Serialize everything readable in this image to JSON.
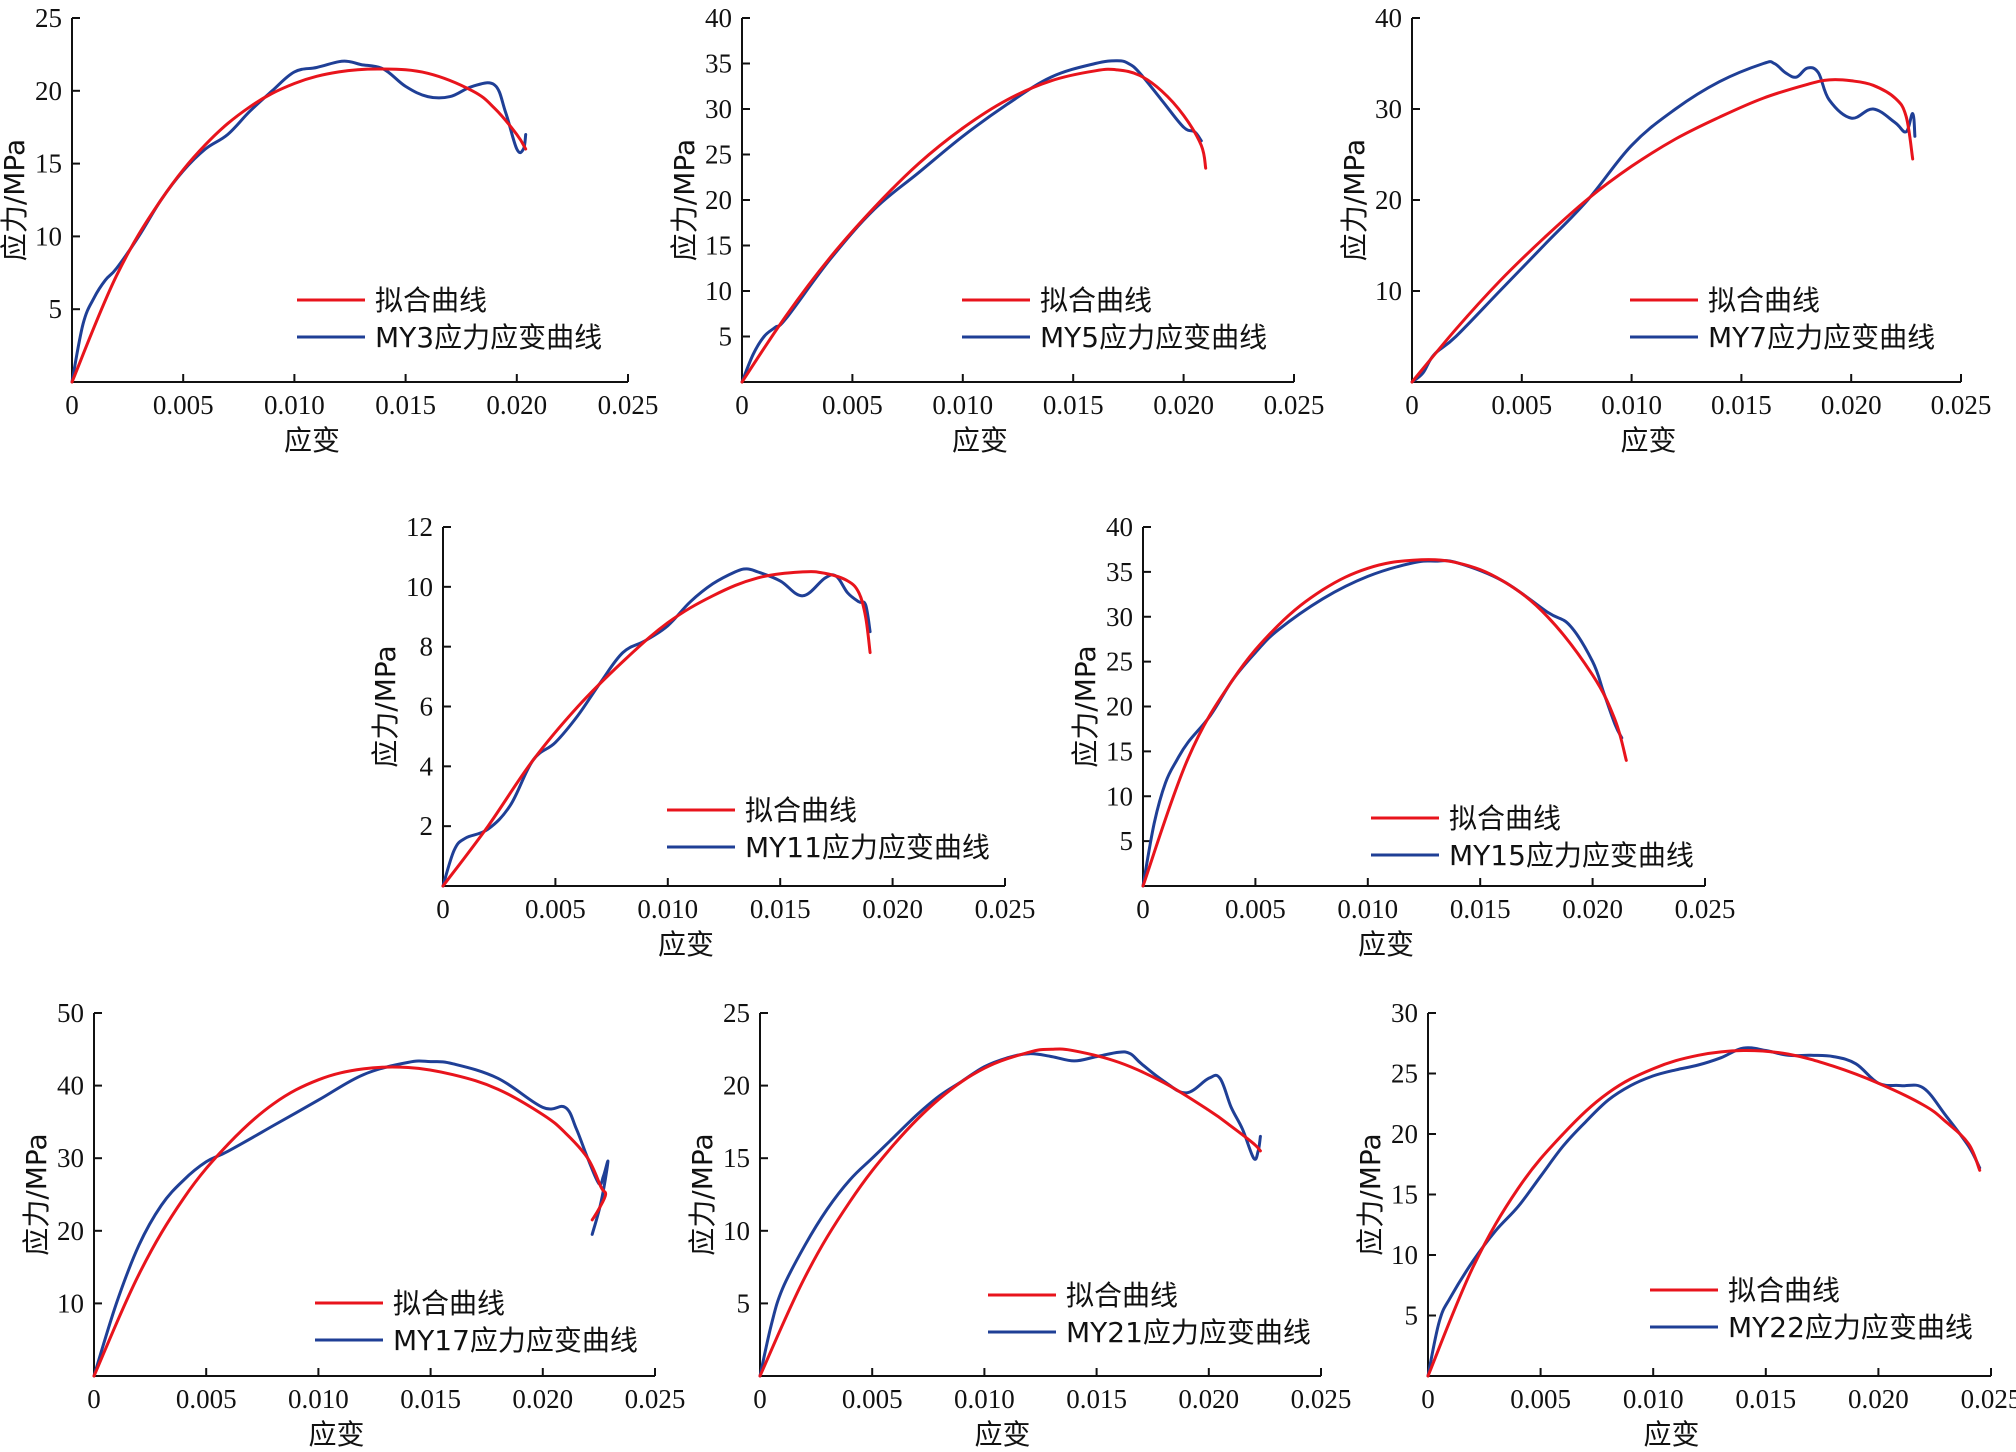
{
  "colors": {
    "fit": "#e8141c",
    "measured": "#1f3f96",
    "axis": "#111111"
  },
  "chart_data": [
    {
      "type": "line",
      "xlabel": "应变",
      "ylabel": "应力/MPa",
      "xlim": [
        0,
        0.025
      ],
      "ylim": [
        0,
        25
      ],
      "xticks": [
        "0",
        "0.005",
        "0.010",
        "0.015",
        "0.020",
        "0.025"
      ],
      "yticks": [
        "5",
        "10",
        "15",
        "20",
        "25"
      ],
      "series": [
        {
          "name": "拟合曲线",
          "color": "#e8141c",
          "x": [
            0,
            0.002,
            0.004,
            0.006,
            0.008,
            0.01,
            0.012,
            0.014,
            0.016,
            0.018,
            0.019,
            0.02,
            0.0204
          ],
          "y": [
            0,
            7.3,
            12.5,
            16.3,
            18.9,
            20.5,
            21.3,
            21.5,
            21.2,
            20.0,
            18.8,
            17.0,
            16.0
          ]
        },
        {
          "name": "MY3应力应变曲线",
          "color": "#1f3f96",
          "x": [
            0,
            0.0005,
            0.001,
            0.0015,
            0.002,
            0.003,
            0.004,
            0.005,
            0.006,
            0.007,
            0.008,
            0.009,
            0.01,
            0.011,
            0.012,
            0.0125,
            0.013,
            0.014,
            0.015,
            0.016,
            0.017,
            0.018,
            0.019,
            0.0195,
            0.02,
            0.0203,
            0.0204
          ],
          "y": [
            0,
            4.0,
            5.8,
            7.0,
            7.8,
            10.0,
            12.5,
            14.5,
            16.0,
            17.0,
            18.6,
            20.0,
            21.3,
            21.6,
            22.0,
            22.0,
            21.8,
            21.5,
            20.3,
            19.6,
            19.6,
            20.3,
            20.4,
            18.5,
            16.0,
            16.0,
            17.0
          ]
        }
      ]
    },
    {
      "type": "line",
      "xlabel": "应变",
      "ylabel": "应力/MPa",
      "xlim": [
        0,
        0.025
      ],
      "ylim": [
        0,
        40
      ],
      "xticks": [
        "0",
        "0.005",
        "0.010",
        "0.015",
        "0.020",
        "0.025"
      ],
      "yticks": [
        "5",
        "10",
        "15",
        "20",
        "25",
        "30",
        "35",
        "40"
      ],
      "series": [
        {
          "name": "拟合曲线",
          "color": "#e8141c",
          "x": [
            0,
            0.002,
            0.004,
            0.006,
            0.008,
            0.01,
            0.012,
            0.014,
            0.016,
            0.017,
            0.018,
            0.019,
            0.02,
            0.0208,
            0.021
          ],
          "y": [
            0,
            7.3,
            13.7,
            19.2,
            24.0,
            27.9,
            31.0,
            33.1,
            34.2,
            34.3,
            33.7,
            32.0,
            29.3,
            26.0,
            23.5
          ]
        },
        {
          "name": "MY5应力应变曲线",
          "color": "#1f3f96",
          "x": [
            0,
            0.0005,
            0.001,
            0.0015,
            0.002,
            0.004,
            0.006,
            0.008,
            0.01,
            0.012,
            0.014,
            0.016,
            0.017,
            0.0175,
            0.018,
            0.019,
            0.02,
            0.0205,
            0.0208
          ],
          "y": [
            0,
            3.0,
            5.0,
            6.0,
            7.0,
            13.5,
            19.0,
            23.0,
            27.0,
            30.5,
            33.5,
            35.0,
            35.3,
            35.0,
            34.0,
            31.0,
            28.0,
            27.5,
            26.5
          ]
        }
      ]
    },
    {
      "type": "line",
      "xlabel": "应变",
      "ylabel": "应力/MPa",
      "xlim": [
        0,
        0.025
      ],
      "ylim": [
        0,
        40
      ],
      "xticks": [
        "0",
        "0.005",
        "0.010",
        "0.015",
        "0.020",
        "0.025"
      ],
      "yticks": [
        "10",
        "20",
        "30",
        "40"
      ],
      "series": [
        {
          "name": "拟合曲线",
          "color": "#e8141c",
          "x": [
            0,
            0.002,
            0.004,
            0.006,
            0.008,
            0.01,
            0.012,
            0.014,
            0.016,
            0.018,
            0.019,
            0.02,
            0.021,
            0.022,
            0.0225,
            0.0228
          ],
          "y": [
            0,
            5.8,
            11.1,
            15.8,
            20.1,
            23.7,
            26.7,
            29.1,
            31.2,
            32.7,
            33.2,
            33.1,
            32.6,
            31.2,
            29.2,
            24.5
          ]
        },
        {
          "name": "MY7应力应变曲线",
          "color": "#1f3f96",
          "x": [
            0,
            0.0005,
            0.001,
            0.002,
            0.004,
            0.006,
            0.008,
            0.01,
            0.012,
            0.014,
            0.016,
            0.0165,
            0.017,
            0.0175,
            0.018,
            0.0185,
            0.019,
            0.02,
            0.021,
            0.022,
            0.0225,
            0.0228,
            0.0229
          ],
          "y": [
            0,
            1.0,
            3.0,
            5.0,
            10.0,
            15.0,
            20.0,
            26.0,
            30.0,
            33.0,
            35.0,
            35.0,
            34.0,
            33.5,
            34.5,
            34.0,
            31.0,
            29.0,
            30.0,
            28.5,
            27.5,
            29.5,
            27.0
          ]
        }
      ]
    },
    {
      "type": "line",
      "xlabel": "应变",
      "ylabel": "应力/MPa",
      "xlim": [
        0,
        0.025
      ],
      "ylim": [
        0,
        12
      ],
      "xticks": [
        "0",
        "0.005",
        "0.010",
        "0.015",
        "0.020",
        "0.025"
      ],
      "yticks": [
        "2",
        "4",
        "6",
        "8",
        "10",
        "12"
      ],
      "series": [
        {
          "name": "拟合曲线",
          "color": "#e8141c",
          "x": [
            0,
            0.002,
            0.004,
            0.006,
            0.008,
            0.01,
            0.012,
            0.014,
            0.016,
            0.017,
            0.018,
            0.0185,
            0.0188,
            0.019
          ],
          "y": [
            0,
            2.0,
            4.2,
            6.0,
            7.5,
            8.8,
            9.7,
            10.3,
            10.5,
            10.45,
            10.2,
            9.8,
            9.0,
            7.8
          ]
        },
        {
          "name": "MY11应力应变曲线",
          "color": "#1f3f96",
          "x": [
            0,
            0.0005,
            0.001,
            0.002,
            0.003,
            0.004,
            0.005,
            0.006,
            0.007,
            0.008,
            0.009,
            0.01,
            0.011,
            0.012,
            0.013,
            0.0135,
            0.014,
            0.015,
            0.016,
            0.017,
            0.0175,
            0.018,
            0.0185,
            0.0188,
            0.019
          ],
          "y": [
            0,
            1.2,
            1.6,
            1.9,
            2.7,
            4.2,
            4.8,
            5.7,
            6.8,
            7.8,
            8.2,
            8.7,
            9.5,
            10.1,
            10.5,
            10.6,
            10.5,
            10.2,
            9.7,
            10.3,
            10.35,
            9.8,
            9.5,
            9.4,
            8.5
          ]
        }
      ]
    },
    {
      "type": "line",
      "xlabel": "应变",
      "ylabel": "应力/MPa",
      "xlim": [
        0,
        0.025
      ],
      "ylim": [
        0,
        40
      ],
      "xticks": [
        "0",
        "0.005",
        "0.010",
        "0.015",
        "0.020",
        "0.025"
      ],
      "yticks": [
        "5",
        "10",
        "15",
        "20",
        "25",
        "30",
        "35",
        "40"
      ],
      "series": [
        {
          "name": "拟合曲线",
          "color": "#e8141c",
          "x": [
            0,
            0.002,
            0.004,
            0.006,
            0.008,
            0.01,
            0.012,
            0.014,
            0.016,
            0.018,
            0.02,
            0.021,
            0.0215
          ],
          "y": [
            0,
            14.2,
            23.0,
            29.0,
            33.0,
            35.4,
            36.3,
            36.0,
            34.0,
            30.0,
            23.5,
            18.5,
            14.0
          ]
        },
        {
          "name": "MY15应力应变曲线",
          "color": "#1f3f96",
          "x": [
            0,
            0.0005,
            0.001,
            0.0015,
            0.002,
            0.003,
            0.004,
            0.005,
            0.006,
            0.008,
            0.01,
            0.012,
            0.013,
            0.014,
            0.016,
            0.018,
            0.019,
            0.02,
            0.0205,
            0.021,
            0.0213
          ],
          "y": [
            0,
            7.0,
            11.5,
            14.0,
            16.0,
            19.0,
            23.0,
            26.0,
            28.5,
            32.0,
            34.5,
            36.0,
            36.2,
            36.0,
            34.0,
            30.5,
            29.0,
            25.0,
            21.5,
            18.0,
            16.5
          ]
        }
      ]
    },
    {
      "type": "line",
      "xlabel": "应变",
      "ylabel": "应力/MPa",
      "xlim": [
        0,
        0.025
      ],
      "ylim": [
        0,
        50
      ],
      "xticks": [
        "0",
        "0.005",
        "0.010",
        "0.015",
        "0.020",
        "0.025"
      ],
      "yticks": [
        "10",
        "20",
        "30",
        "40",
        "50"
      ],
      "series": [
        {
          "name": "拟合曲线",
          "color": "#e8141c",
          "x": [
            0,
            0.002,
            0.004,
            0.006,
            0.008,
            0.01,
            0.012,
            0.014,
            0.016,
            0.018,
            0.02,
            0.021,
            0.022,
            0.0226,
            0.0228,
            0.0225,
            0.0222
          ],
          "y": [
            0,
            14.0,
            24.5,
            32.0,
            37.5,
            40.8,
            42.3,
            42.5,
            41.5,
            39.5,
            36.0,
            33.5,
            30.0,
            26.0,
            25.0,
            23.0,
            21.5
          ]
        },
        {
          "name": "MY17应力应变曲线",
          "color": "#1f3f96",
          "x": [
            0,
            0.001,
            0.002,
            0.003,
            0.004,
            0.005,
            0.006,
            0.008,
            0.01,
            0.012,
            0.014,
            0.015,
            0.016,
            0.018,
            0.02,
            0.021,
            0.0215,
            0.022,
            0.0225,
            0.0227,
            0.0229,
            0.0226,
            0.0222
          ],
          "y": [
            0,
            10.0,
            18.0,
            23.5,
            27.0,
            29.5,
            31.0,
            34.5,
            38.0,
            41.5,
            43.2,
            43.3,
            43.0,
            41.0,
            37.0,
            37.0,
            34.0,
            30.0,
            26.5,
            27.5,
            29.5,
            24.0,
            19.5
          ]
        }
      ]
    },
    {
      "type": "line",
      "xlabel": "应变",
      "ylabel": "应力/MPa",
      "xlim": [
        0,
        0.025
      ],
      "ylim": [
        0,
        25
      ],
      "xticks": [
        "0",
        "0.005",
        "0.010",
        "0.015",
        "0.020",
        "0.025"
      ],
      "yticks": [
        "5",
        "10",
        "15",
        "20",
        "25"
      ],
      "series": [
        {
          "name": "拟合曲线",
          "color": "#e8141c",
          "x": [
            0,
            0.002,
            0.004,
            0.006,
            0.008,
            0.01,
            0.012,
            0.013,
            0.014,
            0.016,
            0.018,
            0.02,
            0.021,
            0.022,
            0.0223
          ],
          "y": [
            0,
            6.8,
            12.0,
            16.0,
            19.1,
            21.2,
            22.3,
            22.5,
            22.4,
            21.6,
            20.2,
            18.3,
            17.2,
            16.0,
            15.5
          ]
        },
        {
          "name": "MY21应力应变曲线",
          "color": "#1f3f96",
          "x": [
            0,
            0.0005,
            0.001,
            0.002,
            0.003,
            0.004,
            0.005,
            0.006,
            0.007,
            0.008,
            0.009,
            0.01,
            0.011,
            0.012,
            0.013,
            0.014,
            0.015,
            0.016,
            0.0165,
            0.017,
            0.018,
            0.019,
            0.02,
            0.0205,
            0.021,
            0.0215,
            0.022,
            0.0222,
            0.0223
          ],
          "y": [
            0,
            3.5,
            6.0,
            9.0,
            11.5,
            13.5,
            15.0,
            16.5,
            18.0,
            19.3,
            20.3,
            21.3,
            21.9,
            22.2,
            22.0,
            21.7,
            22.0,
            22.3,
            22.2,
            21.5,
            20.3,
            19.5,
            20.5,
            20.5,
            18.5,
            17.0,
            15.0,
            15.5,
            16.5
          ]
        }
      ]
    },
    {
      "type": "line",
      "xlabel": "应变",
      "ylabel": "应力/MPa",
      "xlim": [
        0,
        0.025
      ],
      "ylim": [
        0,
        30
      ],
      "xticks": [
        "0",
        "0.005",
        "0.010",
        "0.015",
        "0.020",
        "0.025"
      ],
      "yticks": [
        "5",
        "10",
        "15",
        "20",
        "25",
        "30"
      ],
      "series": [
        {
          "name": "拟合曲线",
          "color": "#e8141c",
          "x": [
            0,
            0.002,
            0.004,
            0.006,
            0.008,
            0.01,
            0.012,
            0.014,
            0.016,
            0.018,
            0.02,
            0.022,
            0.023,
            0.024,
            0.0245
          ],
          "y": [
            0,
            9.0,
            15.5,
            20.0,
            23.4,
            25.4,
            26.5,
            26.9,
            26.6,
            25.6,
            24.2,
            22.4,
            21.0,
            19.2,
            17.0
          ]
        },
        {
          "name": "MY22应力应变曲线",
          "color": "#1f3f96",
          "x": [
            0,
            0.0005,
            0.001,
            0.002,
            0.003,
            0.004,
            0.005,
            0.006,
            0.007,
            0.008,
            0.009,
            0.01,
            0.011,
            0.012,
            0.013,
            0.014,
            0.015,
            0.016,
            0.017,
            0.018,
            0.019,
            0.02,
            0.021,
            0.022,
            0.023,
            0.024,
            0.0245
          ],
          "y": [
            0,
            4.5,
            6.5,
            9.5,
            12.0,
            14.0,
            16.5,
            19.0,
            21.0,
            22.8,
            24.0,
            24.8,
            25.3,
            25.7,
            26.3,
            27.1,
            26.9,
            26.5,
            26.5,
            26.4,
            25.8,
            24.2,
            24.0,
            23.8,
            21.5,
            19.0,
            17.2
          ]
        }
      ]
    }
  ]
}
